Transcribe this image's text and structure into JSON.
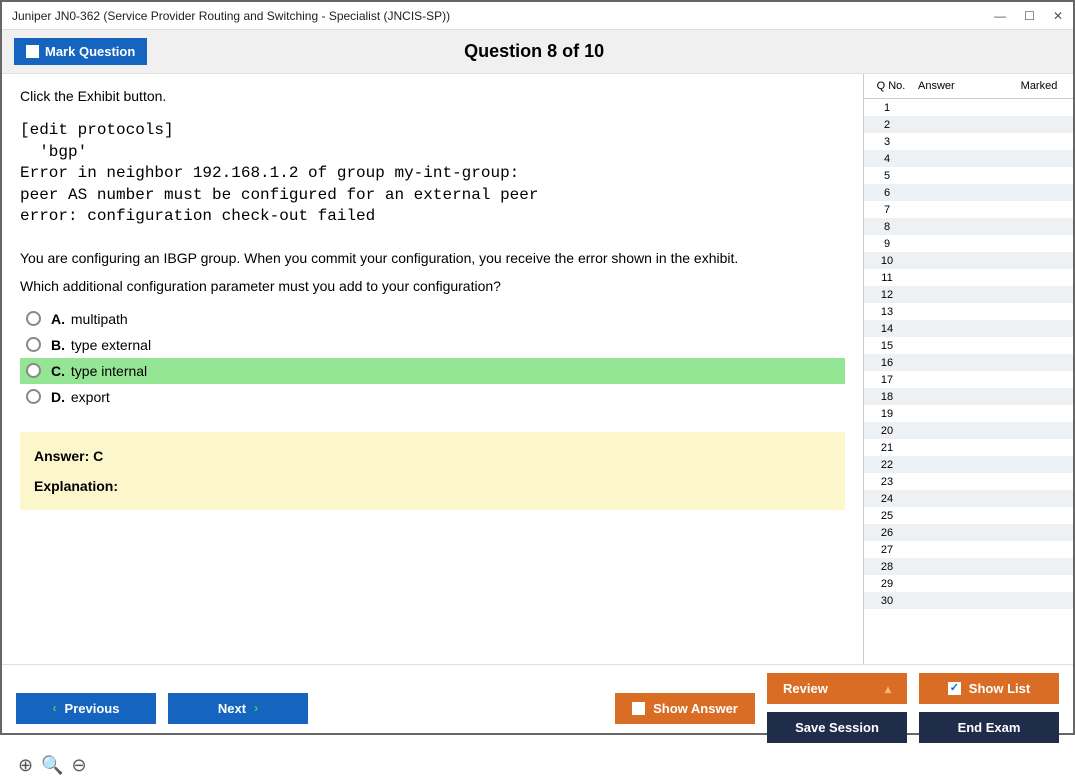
{
  "window": {
    "title": "Juniper JN0-362 (Service Provider Routing and Switching - Specialist (JNCIS-SP))"
  },
  "header": {
    "mark_label": "Mark Question",
    "question_counter": "Question 8 of 10"
  },
  "question": {
    "instruction": "Click the Exhibit button.",
    "code": "[edit protocols]\n  'bgp'\nError in neighbor 192.168.1.2 of group my-int-group:\npeer AS number must be configured for an external peer\nerror: configuration check-out failed",
    "body1": "You are configuring an IBGP group. When you commit your configuration, you receive the error shown in the exhibit.",
    "body2": "Which additional configuration parameter must you add to your configuration?",
    "options": [
      {
        "letter": "A.",
        "text": "multipath",
        "correct": false
      },
      {
        "letter": "B.",
        "text": "type external",
        "correct": false
      },
      {
        "letter": "C.",
        "text": "type internal",
        "correct": true
      },
      {
        "letter": "D.",
        "text": "export",
        "correct": false
      }
    ],
    "answer_label": "Answer: C",
    "explanation_label": "Explanation:"
  },
  "sidepanel": {
    "cols": {
      "q": "Q No.",
      "a": "Answer",
      "m": "Marked"
    },
    "row_count": 30
  },
  "footer": {
    "previous": "Previous",
    "next": "Next",
    "show_answer": "Show Answer",
    "review": "Review",
    "show_list": "Show List",
    "save_session": "Save Session",
    "end_exam": "End Exam"
  },
  "colors": {
    "blue": "#1565c0",
    "orange": "#d96d26",
    "navy": "#1f2d4a",
    "correct_bg": "#94e694",
    "answer_bg": "#fbf6cc"
  }
}
